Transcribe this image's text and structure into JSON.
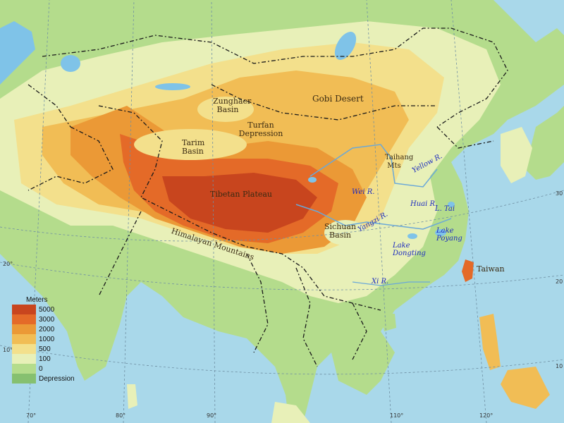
{
  "legend": {
    "title": "Meters",
    "items": [
      {
        "label": "5000",
        "color": "#c8451e"
      },
      {
        "label": "3000",
        "color": "#e46a28"
      },
      {
        "label": "2000",
        "color": "#eb9936"
      },
      {
        "label": "1000",
        "color": "#f1bd55"
      },
      {
        "label": "500",
        "color": "#f3e08c"
      },
      {
        "label": "100",
        "color": "#e8f0b8"
      },
      {
        "label": "0",
        "color": "#b4dc8c"
      },
      {
        "label": "Depression",
        "color": "#86c070"
      }
    ]
  },
  "places": {
    "gobi": "Gobi Desert",
    "zunghaer": "Zunghaer Basin",
    "turfan": "Turfan Depression",
    "tarim": "Tarim Basin",
    "tibet": "Tibetan Plateau",
    "himalaya": "Himalayan Mountains",
    "sichuan": "Sichuan Basin",
    "taihang": "Taihang Mts",
    "taiwan": "Taiwan"
  },
  "waters": {
    "wei": "Wei R.",
    "yellow": "Yellow R.",
    "huai": "Huai R.",
    "tai": "L. Tai",
    "yangzi": "Yangzi R.",
    "poyang": "Lake Poyang",
    "dongting": "Lake Dongting",
    "xi": "Xi R."
  },
  "coords": {
    "lon70": "70°",
    "lon80": "80°",
    "lon90": "90°",
    "lon110": "110°",
    "lon120": "120°",
    "lat20": "20°",
    "lat10": "10°",
    "lat30r": "30",
    "lat20r": "20",
    "lat10r": "10"
  },
  "colors": {
    "sea": "#a9d8ea",
    "lowland": "#b4dc8c",
    "plain": "#e8f0b8",
    "hill": "#f3e08c",
    "upland": "#f1bd55",
    "mountain": "#eb9936",
    "high": "#e46a28",
    "peak": "#c8451e",
    "river_text": "#1c2bbf",
    "border": "#1a1a1a"
  }
}
